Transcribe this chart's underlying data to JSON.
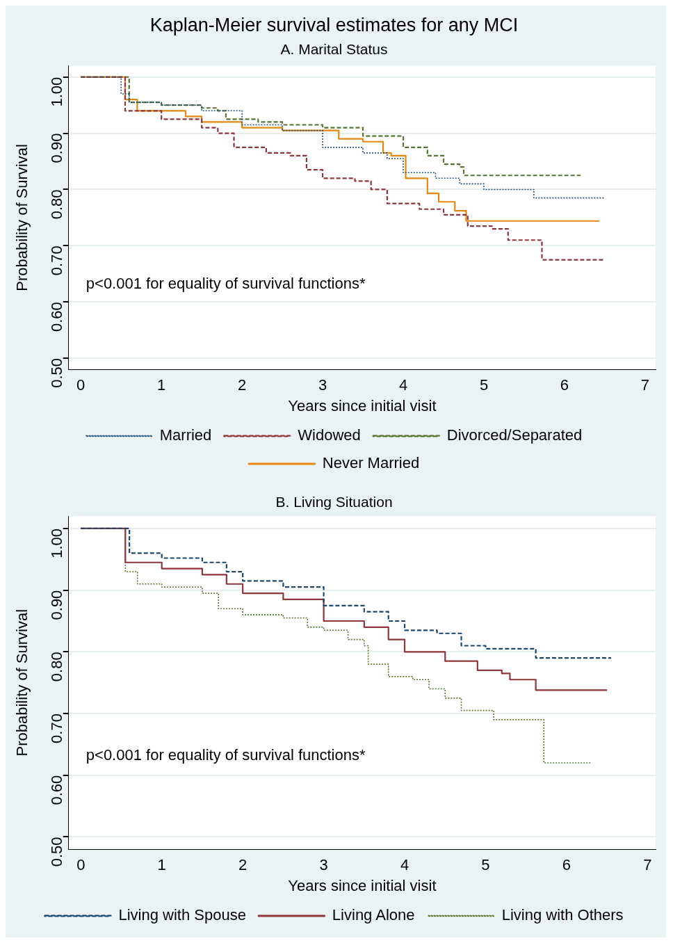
{
  "chart_data": [
    {
      "type": "step",
      "title": "Kaplan-Meier survival estimates for any MCI",
      "subtitle": "A. Marital Status",
      "xlabel": "Years since initial visit",
      "ylabel": "Probability of Survival",
      "xlim": [
        -0.15,
        7.13
      ],
      "xticks": [
        0,
        1,
        2,
        3,
        4,
        5,
        6,
        7
      ],
      "ylim": [
        0.48,
        1.02
      ],
      "yticks": [
        {
          "value": 0.5,
          "label": "0.50"
        },
        {
          "value": 0.6,
          "label": "0.60"
        },
        {
          "value": 0.7,
          "label": "0.70"
        },
        {
          "value": 0.8,
          "label": "0.80"
        },
        {
          "value": 0.9,
          "label": "0.90"
        },
        {
          "value": 1,
          "label": "1.00"
        }
      ],
      "grid": "y",
      "legend": "bottom",
      "marker": "none",
      "annotations": [
        "p<0.001 for equality of survival functions*"
      ],
      "series": [
        {
          "name": "Married",
          "color": "#1f4e79",
          "line_style": "dotted",
          "x": [
            0,
            0.45,
            0.5,
            0.6,
            1.0,
            1.5,
            2.0,
            2.5,
            3.0,
            3.5,
            3.8,
            4.0,
            4.4,
            4.7,
            5.0,
            5.62,
            6.5
          ],
          "values": [
            1,
            1,
            0.97,
            0.955,
            0.95,
            0.94,
            0.915,
            0.905,
            0.875,
            0.865,
            0.855,
            0.83,
            0.82,
            0.81,
            0.8,
            0.785,
            0.785
          ]
        },
        {
          "name": "Widowed",
          "color": "#90353b",
          "line_style": "dashed",
          "x": [
            0,
            0.45,
            0.55,
            1.0,
            1.5,
            1.7,
            1.9,
            2.3,
            2.6,
            2.8,
            3.0,
            3.4,
            3.6,
            3.8,
            4.2,
            4.5,
            4.8,
            5.1,
            5.3,
            5.72,
            6.5
          ],
          "values": [
            1,
            1,
            0.94,
            0.925,
            0.91,
            0.9,
            0.875,
            0.865,
            0.86,
            0.835,
            0.82,
            0.815,
            0.8,
            0.775,
            0.765,
            0.755,
            0.735,
            0.73,
            0.71,
            0.675,
            0.675
          ]
        },
        {
          "name": "Divorced/Separated",
          "color": "#55752f",
          "line_style": "dashed",
          "x": [
            0,
            0.45,
            0.6,
            1.0,
            1.5,
            1.7,
            1.8,
            2.2,
            2.5,
            3.0,
            3.5,
            4.0,
            4.3,
            4.5,
            4.7,
            4.75,
            6.2
          ],
          "values": [
            1,
            1,
            0.955,
            0.95,
            0.945,
            0.94,
            0.925,
            0.92,
            0.915,
            0.91,
            0.895,
            0.875,
            0.86,
            0.845,
            0.84,
            0.825,
            0.825
          ]
        },
        {
          "name": "Never Married",
          "color": "#e8870e",
          "line_style": "solid",
          "x": [
            0,
            0.45,
            0.55,
            0.7,
            1.3,
            1.5,
            2.0,
            2.5,
            3.2,
            3.5,
            3.75,
            3.85,
            4.03,
            4.3,
            4.44,
            4.64,
            4.78,
            6.43
          ],
          "values": [
            1,
            1,
            0.96,
            0.94,
            0.93,
            0.92,
            0.91,
            0.905,
            0.89,
            0.885,
            0.865,
            0.86,
            0.82,
            0.793,
            0.778,
            0.762,
            0.744,
            0.744
          ]
        }
      ]
    },
    {
      "type": "step",
      "title": "B. Living Situation",
      "xlabel": "Years since initial visit",
      "ylabel": "Probability of Survival",
      "xlim": [
        -0.15,
        7.1
      ],
      "xticks": [
        0,
        1,
        2,
        3,
        4,
        5,
        6,
        7
      ],
      "ylim": [
        0.48,
        1.02
      ],
      "yticks": [
        {
          "value": 0.5,
          "label": "0.50"
        },
        {
          "value": 0.6,
          "label": "0.60"
        },
        {
          "value": 0.7,
          "label": "0.70"
        },
        {
          "value": 0.8,
          "label": "0.80"
        },
        {
          "value": 0.9,
          "label": "0.90"
        },
        {
          "value": 1,
          "label": "1.00"
        }
      ],
      "grid": "y",
      "legend": "bottom",
      "marker": "none",
      "annotations": [
        "p<0.001 for equality of survival functions*"
      ],
      "series": [
        {
          "name": "Living with Spouse",
          "color": "#1a476f",
          "line_style": "dashed",
          "x": [
            0,
            0.45,
            0.6,
            1.0,
            1.5,
            1.8,
            2.0,
            2.5,
            3.0,
            3.5,
            3.8,
            4.0,
            4.4,
            4.7,
            5.0,
            5.62,
            6.55
          ],
          "values": [
            1,
            1,
            0.96,
            0.952,
            0.945,
            0.93,
            0.915,
            0.905,
            0.875,
            0.865,
            0.85,
            0.835,
            0.83,
            0.81,
            0.805,
            0.79,
            0.79
          ]
        },
        {
          "name": "Living Alone",
          "color": "#90353b",
          "line_style": "solid",
          "x": [
            0,
            0.45,
            0.55,
            1.0,
            1.5,
            1.8,
            2.0,
            2.5,
            3.0,
            3.5,
            3.8,
            4.0,
            4.5,
            4.9,
            5.2,
            5.3,
            5.62,
            6.5
          ],
          "values": [
            1,
            1,
            0.945,
            0.935,
            0.925,
            0.91,
            0.895,
            0.885,
            0.85,
            0.84,
            0.82,
            0.8,
            0.785,
            0.77,
            0.765,
            0.755,
            0.738,
            0.738
          ]
        },
        {
          "name": "Living with Others",
          "color": "#55752f",
          "line_style": "dotted",
          "x": [
            0,
            0.45,
            0.55,
            0.7,
            1.0,
            1.5,
            1.7,
            2.0,
            2.5,
            2.8,
            3.0,
            3.3,
            3.5,
            3.55,
            3.8,
            4.1,
            4.3,
            4.5,
            4.7,
            5.1,
            5.72,
            6.3
          ],
          "values": [
            1,
            1,
            0.93,
            0.91,
            0.905,
            0.895,
            0.87,
            0.86,
            0.855,
            0.84,
            0.835,
            0.82,
            0.81,
            0.78,
            0.76,
            0.755,
            0.74,
            0.725,
            0.705,
            0.69,
            0.62,
            0.62
          ]
        }
      ]
    }
  ]
}
